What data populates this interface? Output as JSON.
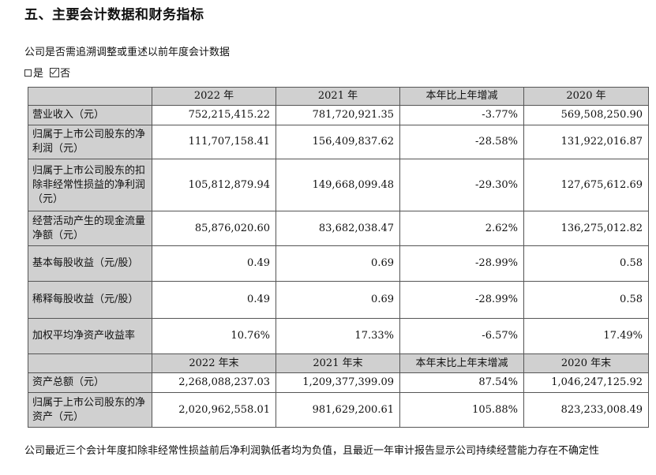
{
  "heading": "五、主要会计数据和财务指标",
  "intro": "公司是否需追溯调整或重述以前年度会计数据",
  "option_yes": "是",
  "option_no": "否",
  "table": {
    "header_top": [
      "",
      "2022 年",
      "2021 年",
      "本年比上年增减",
      "2020 年"
    ],
    "rows_top": [
      {
        "label": "营业收入（元）",
        "values": [
          "752,215,415.22",
          "781,720,921.35",
          "-3.77%",
          "569,508,250.90"
        ]
      },
      {
        "label": "归属于上市公司股东的净利润（元）",
        "values": [
          "111,707,158.41",
          "156,409,837.62",
          "-28.58%",
          "131,922,016.87"
        ]
      },
      {
        "label": "归属于上市公司股东的扣除非经常性损益的净利润（元）",
        "values": [
          "105,812,879.94",
          "149,668,099.48",
          "-29.30%",
          "127,675,612.69"
        ]
      },
      {
        "label": "经营活动产生的现金流量净额（元）",
        "values": [
          "85,876,020.60",
          "83,682,038.47",
          "2.62%",
          "136,275,012.82"
        ]
      },
      {
        "label": "基本每股收益（元/股）",
        "values": [
          "0.49",
          "0.69",
          "-28.99%",
          "0.58"
        ]
      },
      {
        "label": "稀释每股收益（元/股）",
        "values": [
          "0.49",
          "0.69",
          "-28.99%",
          "0.58"
        ]
      },
      {
        "label": "加权平均净资产收益率",
        "values": [
          "10.76%",
          "17.33%",
          "-6.57%",
          "17.49%"
        ]
      }
    ],
    "header_bottom": [
      "",
      "2022 年末",
      "2021 年末",
      "本年末比上年末增减",
      "2020 年末"
    ],
    "rows_bottom": [
      {
        "label": "资产总额（元）",
        "values": [
          "2,268,088,237.03",
          "1,209,377,399.09",
          "87.54%",
          "1,046,247,125.92"
        ]
      },
      {
        "label": "归属于上市公司股东的净资产（元）",
        "values": [
          "2,020,962,558.01",
          "981,629,200.61",
          "105.88%",
          "823,233,008.49"
        ]
      }
    ]
  },
  "footer": "公司最近三个会计年度扣除非经常性损益前后净利润孰低者均为负值，且最近一年审计报告显示公司持续经营能力存在不确定性"
}
